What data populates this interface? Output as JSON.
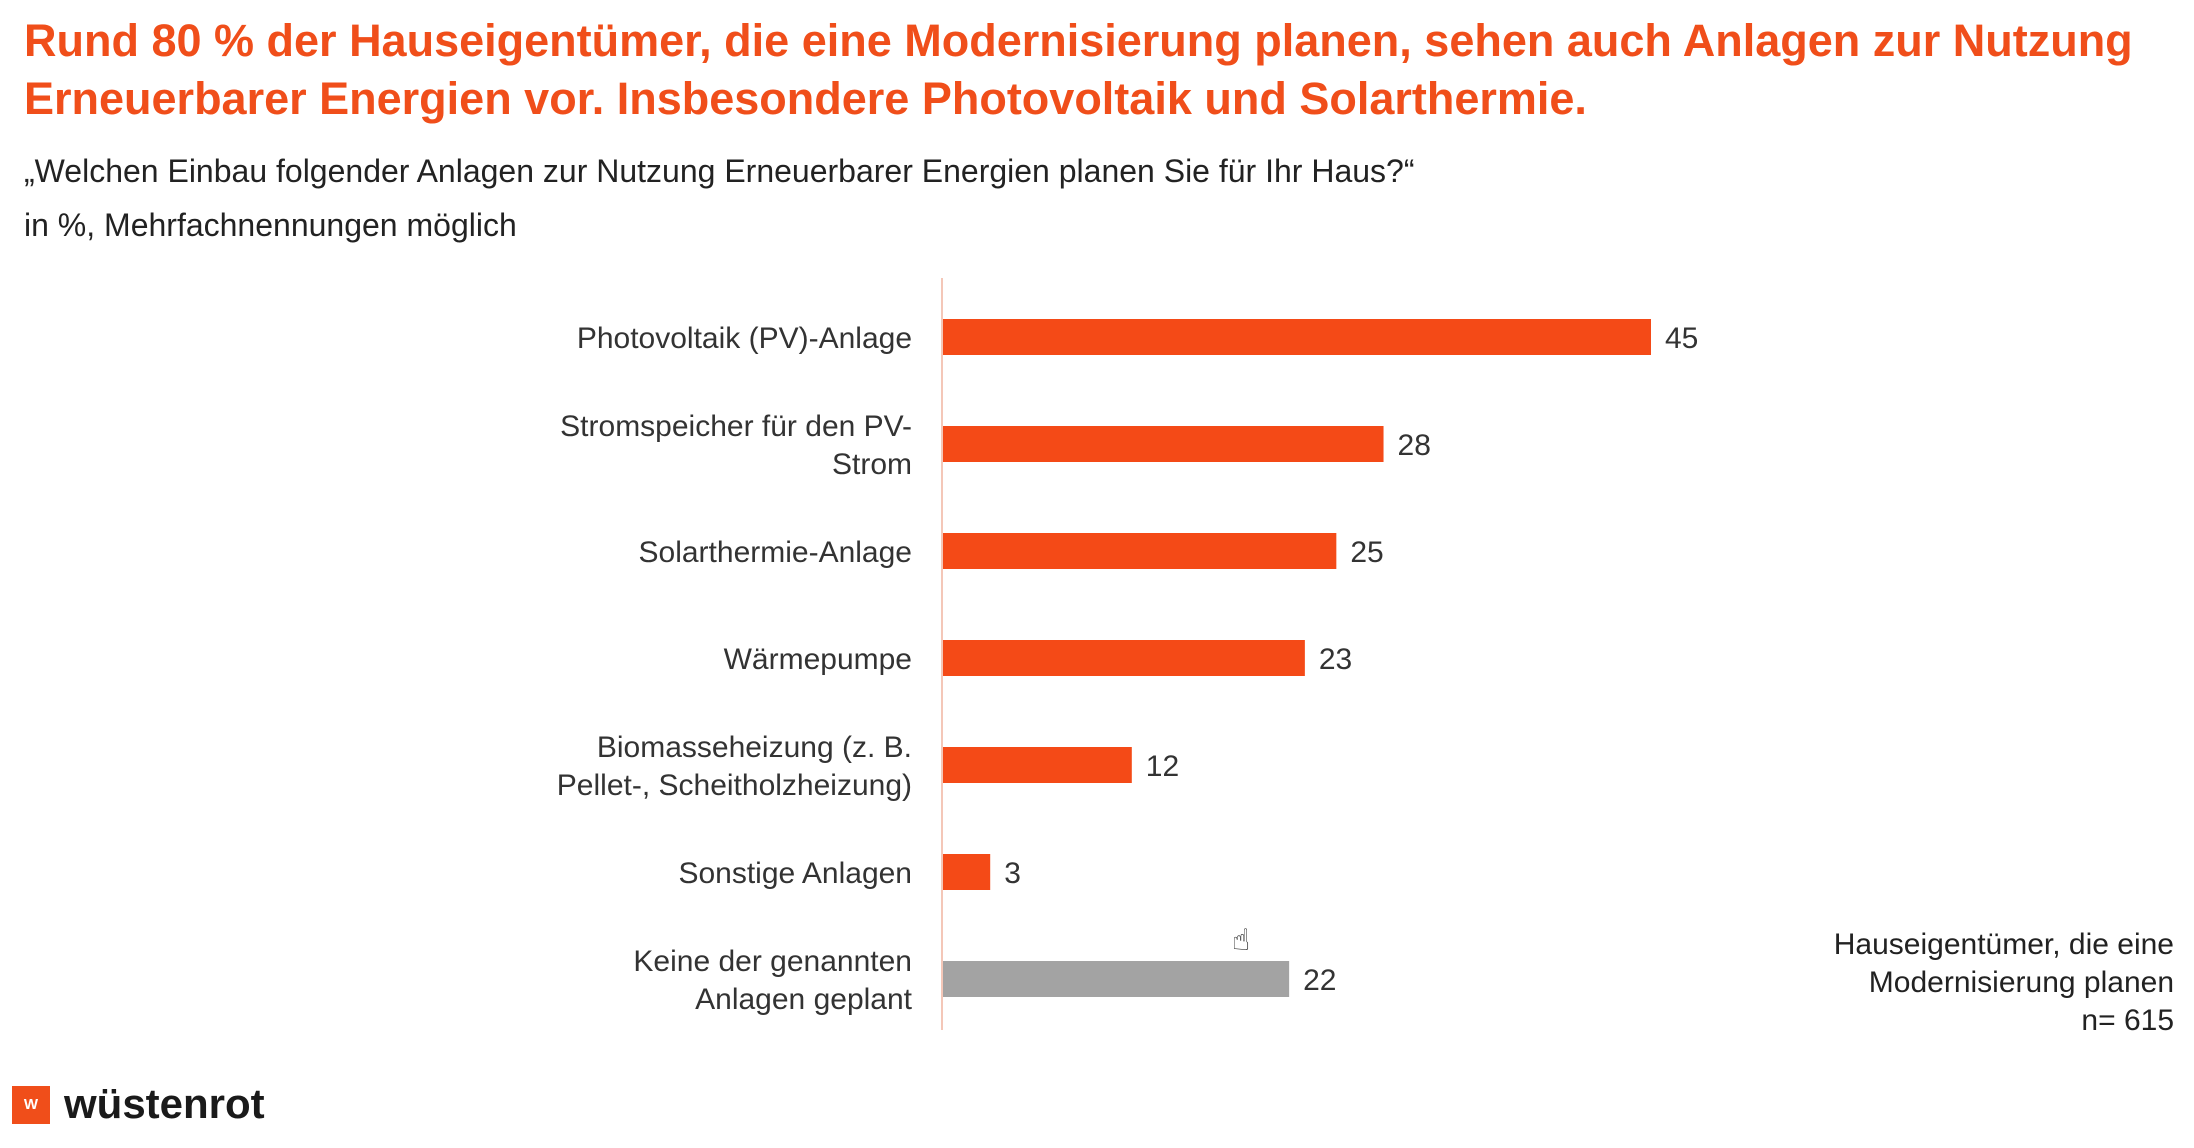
{
  "header": {
    "title": "Rund 80 % der Hauseigentümer, die eine Modernisierung planen, sehen auch Anlagen zur Nutzung Erneuerbarer Energien vor. Insbesondere Photovoltaik und Solarthermie.",
    "subtitle_line1": "„Welchen Einbau folgender Anlagen zur Nutzung Erneuerbarer Energien planen Sie für Ihr Haus?“",
    "subtitle_line2": "in %, Mehrfachnennungen möglich"
  },
  "chart_data": {
    "type": "bar",
    "orientation": "horizontal",
    "categories": [
      "Photovoltaik (PV)-Anlage",
      "Stromspeicher für den PV-Strom",
      "Solarthermie-Anlage",
      "Wärmepumpe",
      "Biomasseheizung (z. B. Pellet-, Scheitholzheizung)",
      "Sonstige Anlagen",
      "Keine der genannten Anlagen geplant"
    ],
    "category_label_lines": [
      [
        "Photovoltaik (PV)-Anlage"
      ],
      [
        "Stromspeicher für den PV-",
        "Strom"
      ],
      [
        "Solarthermie-Anlage"
      ],
      [
        "Wärmepumpe"
      ],
      [
        "Biomasseheizung (z. B.",
        "Pellet-, Scheitholzheizung)"
      ],
      [
        "Sonstige Anlagen"
      ],
      [
        "Keine der genannten",
        "Anlagen geplant"
      ]
    ],
    "values": [
      45,
      28,
      25,
      23,
      12,
      3,
      22
    ],
    "data_labels": [
      "45",
      "28",
      "25",
      "23",
      "12",
      "3",
      "22"
    ],
    "bar_colors": [
      "#f44a17",
      "#f44a17",
      "#f44a17",
      "#f44a17",
      "#f44a17",
      "#f44a17",
      "#a3a3a3"
    ],
    "xlim": [
      0,
      45
    ],
    "grid": false,
    "legend": "none"
  },
  "base_note": {
    "line1": "Hauseigentümer, die eine",
    "line2": "Modernisierung planen",
    "line3": "n= 615"
  },
  "brand": {
    "mark": "W",
    "name": "wüstenrot",
    "accent_color": "#f04e1a"
  },
  "cursor": {
    "icon": "hand-pointer-icon"
  }
}
